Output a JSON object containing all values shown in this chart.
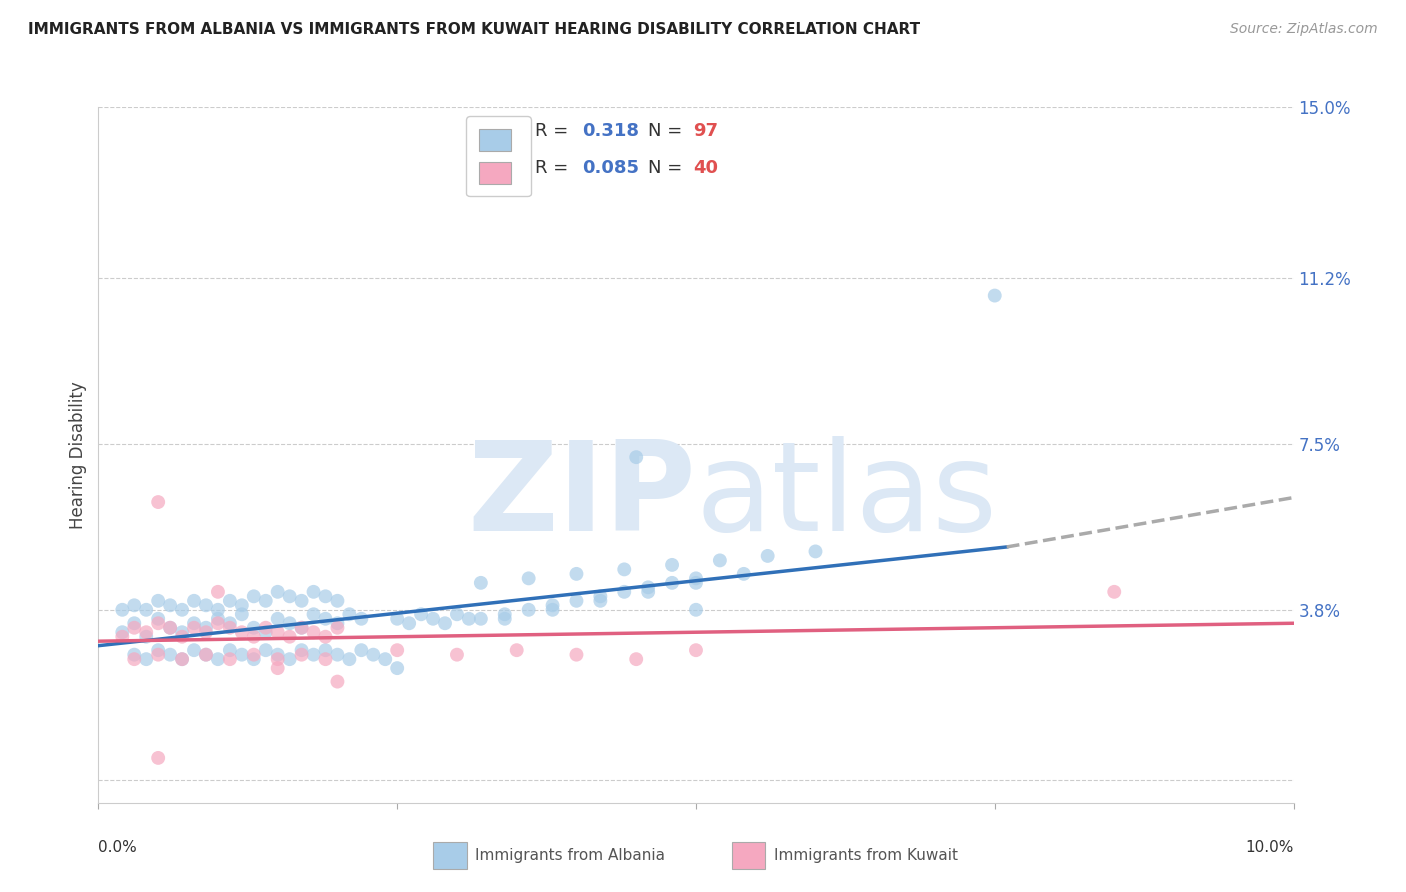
{
  "title": "IMMIGRANTS FROM ALBANIA VS IMMIGRANTS FROM KUWAIT HEARING DISABILITY CORRELATION CHART",
  "source": "Source: ZipAtlas.com",
  "ylabel": "Hearing Disability",
  "xlim": [
    0.0,
    0.1
  ],
  "ylim": [
    -0.005,
    0.15
  ],
  "albania_R": 0.318,
  "albania_N": 97,
  "kuwait_R": 0.085,
  "kuwait_N": 40,
  "albania_color": "#a8cce8",
  "kuwait_color": "#f5a8c0",
  "albania_line_color": "#3070b8",
  "kuwait_line_color": "#e06080",
  "trendline_dash_color": "#aaaaaa",
  "background_color": "#ffffff",
  "grid_color": "#cccccc",
  "watermark_color": "#dce8f5",
  "legend_box_color_albania": "#a8cce8",
  "legend_box_color_kuwait": "#f5a8c0",
  "legend_R_color": "#4472c4",
  "legend_N_color": "#e05050",
  "ytick_color": "#4472c4",
  "albania_trend_x0": 0.0,
  "albania_trend_x_solid_end": 0.076,
  "albania_trend_x_dash_end": 0.1,
  "albania_trend_y0": 0.03,
  "albania_trend_y_solid_end": 0.052,
  "albania_trend_y_dash_end": 0.063,
  "kuwait_trend_x0": 0.0,
  "kuwait_trend_x_end": 0.1,
  "kuwait_trend_y0": 0.031,
  "kuwait_trend_y_end": 0.035,
  "albania_scatter_x": [
    0.002,
    0.003,
    0.004,
    0.005,
    0.006,
    0.007,
    0.008,
    0.009,
    0.01,
    0.011,
    0.012,
    0.013,
    0.014,
    0.015,
    0.016,
    0.017,
    0.018,
    0.019,
    0.02,
    0.021,
    0.022,
    0.003,
    0.004,
    0.005,
    0.006,
    0.007,
    0.008,
    0.009,
    0.01,
    0.011,
    0.012,
    0.013,
    0.014,
    0.015,
    0.016,
    0.017,
    0.018,
    0.019,
    0.02,
    0.021,
    0.022,
    0.023,
    0.024,
    0.025,
    0.026,
    0.027,
    0.028,
    0.029,
    0.03,
    0.031,
    0.002,
    0.003,
    0.004,
    0.005,
    0.006,
    0.007,
    0.008,
    0.009,
    0.01,
    0.011,
    0.012,
    0.013,
    0.014,
    0.015,
    0.016,
    0.017,
    0.018,
    0.019,
    0.02,
    0.032,
    0.034,
    0.036,
    0.038,
    0.04,
    0.042,
    0.044,
    0.046,
    0.048,
    0.05,
    0.032,
    0.036,
    0.04,
    0.044,
    0.048,
    0.052,
    0.056,
    0.06,
    0.034,
    0.038,
    0.042,
    0.046,
    0.05,
    0.054,
    0.045,
    0.075,
    0.05,
    0.025
  ],
  "albania_scatter_y": [
    0.033,
    0.035,
    0.032,
    0.036,
    0.034,
    0.033,
    0.035,
    0.034,
    0.036,
    0.035,
    0.037,
    0.034,
    0.033,
    0.036,
    0.035,
    0.034,
    0.037,
    0.036,
    0.035,
    0.037,
    0.036,
    0.028,
    0.027,
    0.029,
    0.028,
    0.027,
    0.029,
    0.028,
    0.027,
    0.029,
    0.028,
    0.027,
    0.029,
    0.028,
    0.027,
    0.029,
    0.028,
    0.029,
    0.028,
    0.027,
    0.029,
    0.028,
    0.027,
    0.036,
    0.035,
    0.037,
    0.036,
    0.035,
    0.037,
    0.036,
    0.038,
    0.039,
    0.038,
    0.04,
    0.039,
    0.038,
    0.04,
    0.039,
    0.038,
    0.04,
    0.039,
    0.041,
    0.04,
    0.042,
    0.041,
    0.04,
    0.042,
    0.041,
    0.04,
    0.036,
    0.037,
    0.038,
    0.039,
    0.04,
    0.041,
    0.042,
    0.043,
    0.044,
    0.045,
    0.044,
    0.045,
    0.046,
    0.047,
    0.048,
    0.049,
    0.05,
    0.051,
    0.036,
    0.038,
    0.04,
    0.042,
    0.044,
    0.046,
    0.072,
    0.108,
    0.038,
    0.025
  ],
  "kuwait_scatter_x": [
    0.002,
    0.003,
    0.004,
    0.005,
    0.006,
    0.007,
    0.008,
    0.009,
    0.01,
    0.011,
    0.012,
    0.013,
    0.014,
    0.015,
    0.016,
    0.017,
    0.018,
    0.019,
    0.02,
    0.003,
    0.005,
    0.007,
    0.009,
    0.011,
    0.013,
    0.015,
    0.017,
    0.019,
    0.025,
    0.03,
    0.035,
    0.04,
    0.045,
    0.05,
    0.005,
    0.01,
    0.015,
    0.085,
    0.005,
    0.02
  ],
  "kuwait_scatter_y": [
    0.032,
    0.034,
    0.033,
    0.035,
    0.034,
    0.032,
    0.034,
    0.033,
    0.035,
    0.034,
    0.033,
    0.032,
    0.034,
    0.033,
    0.032,
    0.034,
    0.033,
    0.032,
    0.034,
    0.027,
    0.028,
    0.027,
    0.028,
    0.027,
    0.028,
    0.027,
    0.028,
    0.027,
    0.029,
    0.028,
    0.029,
    0.028,
    0.027,
    0.029,
    0.062,
    0.042,
    0.025,
    0.042,
    0.005,
    0.022
  ]
}
